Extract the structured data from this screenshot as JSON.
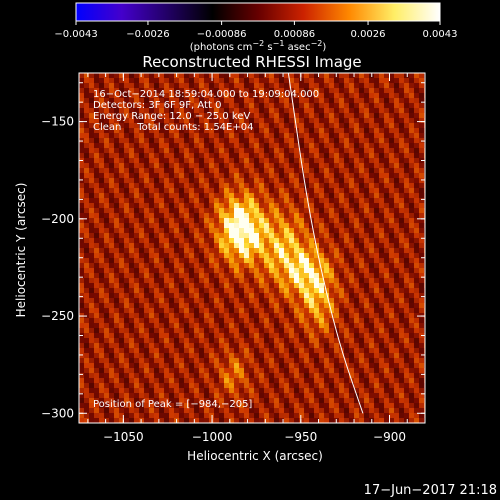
{
  "chart_data": {
    "type": "heatmap",
    "title": "Reconstructed RHESSI Image",
    "xlabel": "Heliocentric X (arcsec)",
    "ylabel": "Heliocentric Y (arcsec)",
    "xlim": [
      -1075,
      -880
    ],
    "ylim": [
      -305,
      -125
    ],
    "xticks": [
      -1050,
      -1000,
      -950,
      -900
    ],
    "yticks": [
      -150,
      -200,
      -250,
      -300
    ],
    "xtick_labels": [
      "−1050",
      "−1000",
      "−950",
      "−900"
    ],
    "ytick_labels": [
      "−150",
      "−200",
      "−250",
      "−300"
    ],
    "colorbar": {
      "range": [
        -0.0043,
        0.0043
      ],
      "ticks": [
        -0.0043,
        -0.0026,
        -0.00086,
        0.00086,
        0.0026,
        0.0043
      ],
      "tick_labels": [
        "−0.0043",
        "−0.0026",
        "−0.00086",
        "0.00086",
        "0.0026",
        "0.0043"
      ],
      "unit_html": "(photons cm<tspan dy='-4' font-size='8'>−2</tspan><tspan dy='4'> s</tspan><tspan dy='-4' font-size='8'>−1</tspan><tspan dy='4'> asec</tspan><tspan dy='-4' font-size='8'>−2</tspan><tspan dy='4'>)</tspan>",
      "colors": [
        "#0000ff",
        "#4400cc",
        "#220066",
        "#000000",
        "#660000",
        "#cc2200",
        "#ff8800",
        "#ffee66",
        "#ffffff"
      ]
    },
    "info_lines": [
      "16−Oct−2014 18:59:04.000 to 19:09:04.000",
      "Detectors: 3F 6F 9F, Att 0",
      "Energy Range: 12.0 − 25.0 keV",
      "Clean     Total counts: 1.54E+04"
    ],
    "peak_label": "Position of Peak = [−984,−205]",
    "peak": [
      -984,
      -205
    ],
    "sources": [
      {
        "x": -984,
        "y": -205,
        "amp": 1.0,
        "sx": 9,
        "sy": 12
      },
      {
        "x": -960,
        "y": -215,
        "amp": 0.55,
        "sx": 10,
        "sy": 14
      },
      {
        "x": -945,
        "y": -228,
        "amp": 0.6,
        "sx": 9,
        "sy": 9
      },
      {
        "x": -940,
        "y": -245,
        "amp": 0.45,
        "sx": 7,
        "sy": 10
      },
      {
        "x": -988,
        "y": -280,
        "amp": 0.35,
        "sx": 6,
        "sy": 8
      }
    ],
    "limb_curve": [
      [
        -957,
        -125
      ],
      [
        -945,
        -200
      ],
      [
        -930,
        -260
      ],
      [
        -915,
        -300
      ]
    ]
  },
  "timestamp": "17−Jun−2017 21:18"
}
